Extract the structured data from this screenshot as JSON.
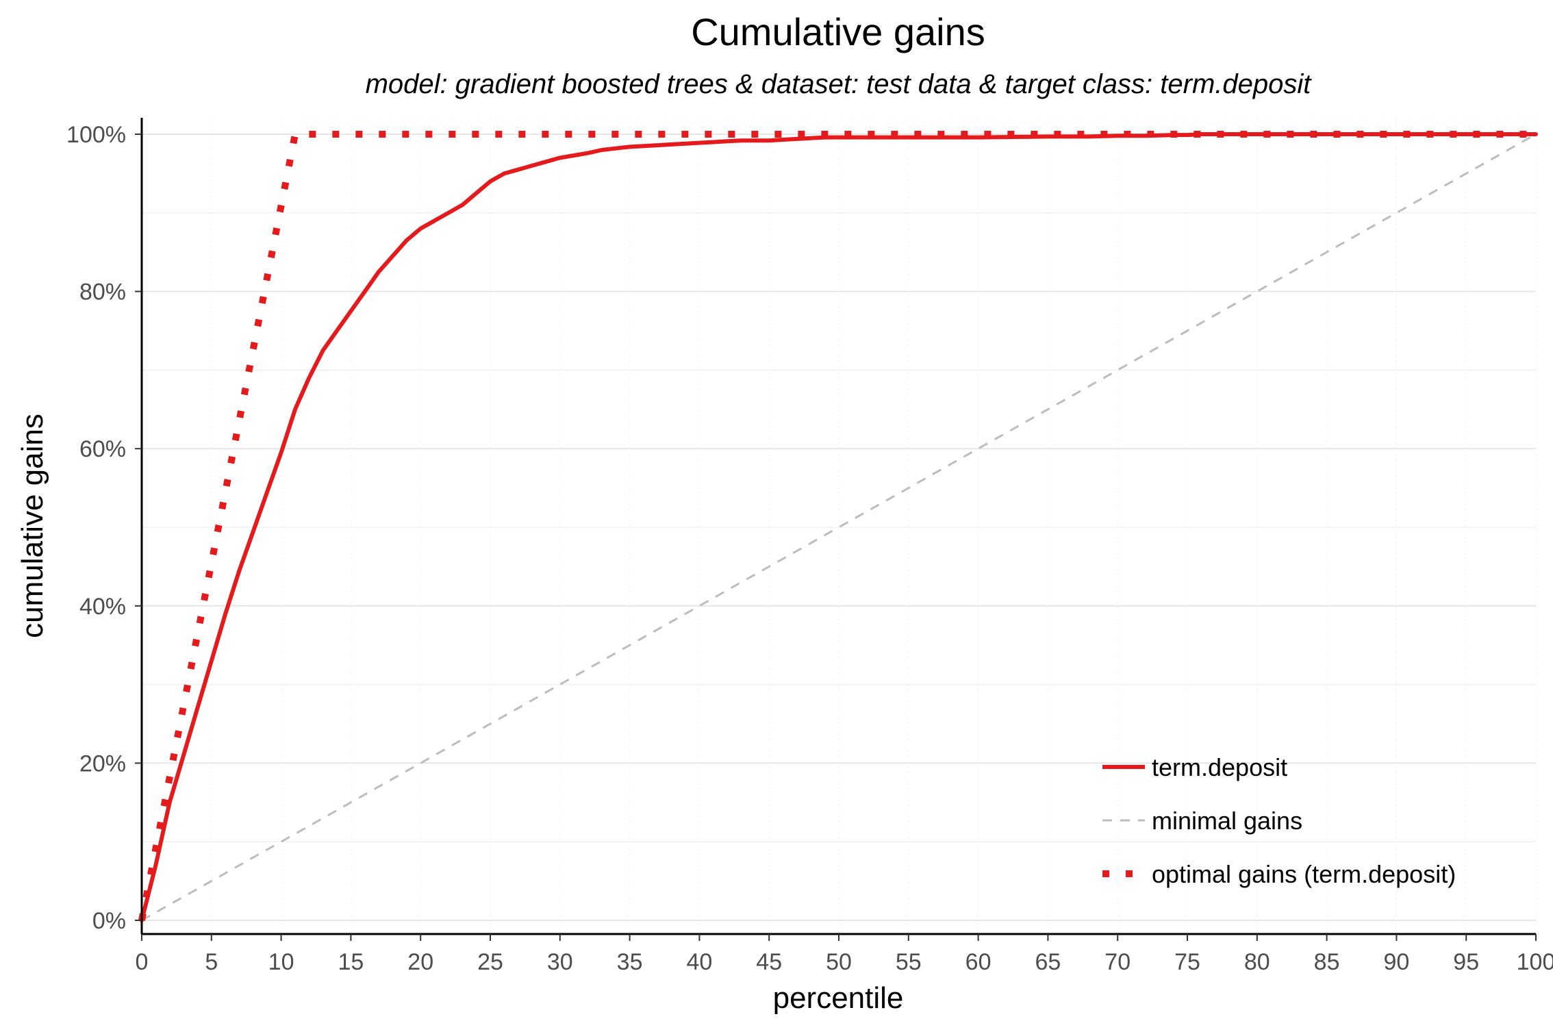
{
  "chart_data": {
    "type": "line",
    "title": "Cumulative gains",
    "subtitle": "model: gradient boosted trees  &  dataset: test data  &  target class: term.deposit",
    "xlabel": "percentile",
    "ylabel": "cumulative gains",
    "xlim": [
      0,
      100
    ],
    "ylim": [
      0,
      100
    ],
    "x_ticks": [
      "0",
      "5",
      "10",
      "15",
      "20",
      "25",
      "30",
      "35",
      "40",
      "45",
      "50",
      "55",
      "60",
      "65",
      "70",
      "75",
      "80",
      "85",
      "90",
      "95",
      "100"
    ],
    "y_ticks": [
      "0%",
      "20%",
      "40%",
      "60%",
      "80%",
      "100%"
    ],
    "grid": true,
    "legend_position": "bottom-right",
    "series": [
      {
        "name": "term.deposit",
        "style": "solid",
        "color": "#e41a1c",
        "x": [
          0,
          1,
          2,
          3,
          4,
          5,
          6,
          7,
          8,
          9,
          10,
          11,
          12,
          13,
          14,
          15,
          16,
          17,
          18,
          19,
          20,
          21,
          22,
          23,
          24,
          25,
          26,
          27,
          28,
          29,
          30,
          31,
          32,
          33,
          34,
          35,
          36,
          37,
          38,
          39,
          40,
          41,
          42,
          43,
          44,
          45,
          46,
          47,
          48,
          49,
          50,
          55,
          60,
          65,
          68,
          70,
          72,
          74,
          75,
          76,
          80,
          85,
          90,
          95,
          100
        ],
        "y": [
          0,
          7,
          15,
          21,
          27,
          33,
          39,
          44.5,
          49.5,
          54.5,
          59.5,
          65,
          69,
          72.5,
          75,
          77.5,
          80,
          82.5,
          84.5,
          86.5,
          88,
          89,
          90,
          91,
          92.5,
          94,
          95,
          95.5,
          96,
          96.5,
          97,
          97.3,
          97.6,
          98,
          98.2,
          98.4,
          98.5,
          98.6,
          98.7,
          98.8,
          98.9,
          99,
          99.1,
          99.2,
          99.2,
          99.2,
          99.3,
          99.4,
          99.5,
          99.6,
          99.6,
          99.6,
          99.6,
          99.7,
          99.7,
          99.8,
          99.8,
          99.9,
          99.9,
          100,
          100,
          100,
          100,
          100,
          100
        ]
      },
      {
        "name": "minimal gains",
        "style": "dashed",
        "color": "#bdbdbd",
        "x": [
          0,
          100
        ],
        "y": [
          0,
          100
        ]
      },
      {
        "name": "optimal gains (term.deposit)",
        "style": "dotted",
        "color": "#e41a1c",
        "x": [
          0,
          11,
          100
        ],
        "y": [
          0,
          100,
          100
        ]
      }
    ]
  }
}
